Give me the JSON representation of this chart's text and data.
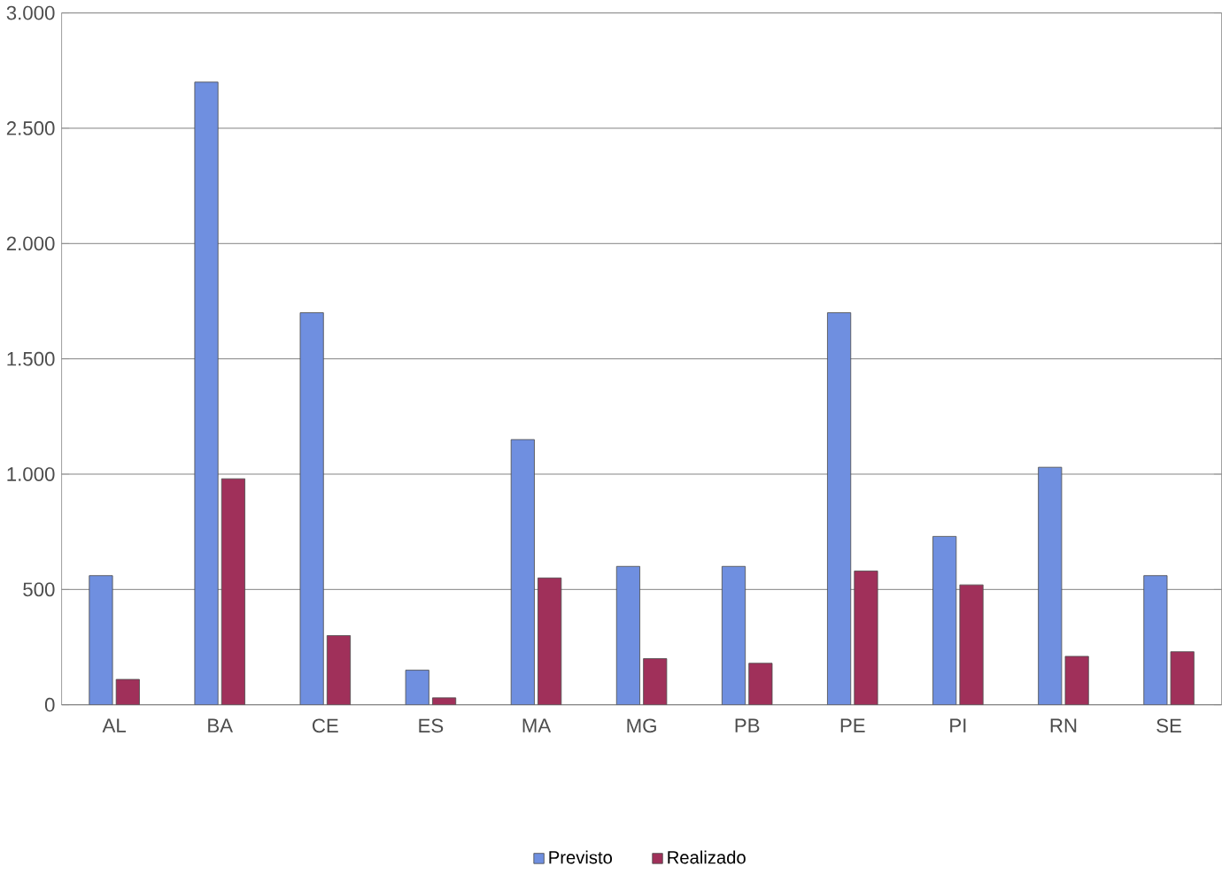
{
  "chart_data": {
    "type": "bar",
    "categories": [
      "AL",
      "BA",
      "CE",
      "ES",
      "MA",
      "MG",
      "PB",
      "PE",
      "PI",
      "RN",
      "SE"
    ],
    "series": [
      {
        "name": "Previsto",
        "color": "#6f8fe0",
        "values": [
          560,
          2700,
          1700,
          150,
          1150,
          600,
          600,
          1700,
          730,
          1030,
          560
        ]
      },
      {
        "name": "Realizado",
        "color": "#a0305a",
        "values": [
          110,
          980,
          300,
          30,
          550,
          200,
          180,
          580,
          520,
          210,
          230
        ]
      }
    ],
    "ylim": [
      0,
      3000
    ],
    "yticks": [
      {
        "value": 0,
        "label": "0"
      },
      {
        "value": 500,
        "label": "500"
      },
      {
        "value": 1000,
        "label": "1.000"
      },
      {
        "value": 1500,
        "label": "1.500"
      },
      {
        "value": 2000,
        "label": "2.000"
      },
      {
        "value": 2500,
        "label": "2.500"
      },
      {
        "value": 3000,
        "label": "3.000"
      }
    ],
    "grid": "y",
    "legend": "bottom"
  }
}
